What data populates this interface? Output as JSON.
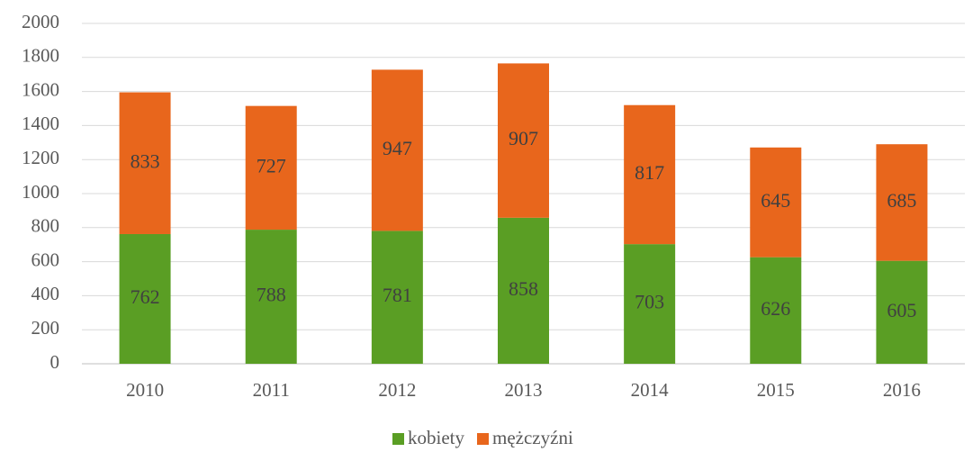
{
  "chart_data": {
    "type": "bar",
    "stacked": true,
    "categories": [
      "2010",
      "2011",
      "2012",
      "2013",
      "2014",
      "2015",
      "2016"
    ],
    "series": [
      {
        "name": "kobiety",
        "color": "#5a9e24",
        "values": [
          762,
          788,
          781,
          858,
          703,
          626,
          605
        ]
      },
      {
        "name": "mężczyźni",
        "color": "#e8661c",
        "values": [
          833,
          727,
          947,
          907,
          817,
          645,
          685
        ]
      }
    ],
    "ylim": [
      0,
      2000
    ],
    "yticks": [
      0,
      200,
      400,
      600,
      800,
      1000,
      1200,
      1400,
      1600,
      1800,
      2000
    ],
    "grid": true,
    "legend": "bottom",
    "data_labels": true
  }
}
